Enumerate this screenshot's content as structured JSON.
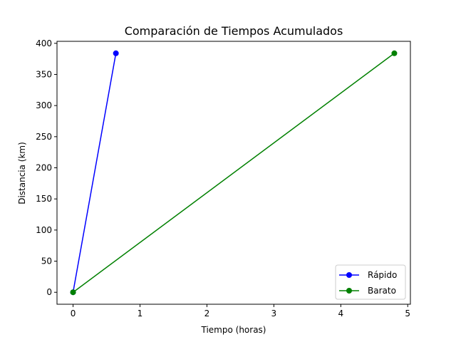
{
  "chart_data": {
    "type": "line",
    "title": "Comparación de Tiempos Acumulados",
    "xlabel": "Tiempo (horas)",
    "ylabel": "Distancia (km)",
    "xlim": [
      -0.24,
      5.04
    ],
    "ylim": [
      -19.2,
      403.2
    ],
    "xticks": [
      0,
      1,
      2,
      3,
      4,
      5
    ],
    "yticks": [
      0,
      50,
      100,
      150,
      200,
      250,
      300,
      350,
      400
    ],
    "grid": false,
    "legend_position": "lower-right",
    "series": [
      {
        "name": "Rápido",
        "color": "#0000ff",
        "x": [
          0,
          0.64
        ],
        "y": [
          0,
          384
        ]
      },
      {
        "name": "Barato",
        "color": "#008000",
        "x": [
          0,
          4.8
        ],
        "y": [
          0,
          384
        ]
      }
    ]
  }
}
